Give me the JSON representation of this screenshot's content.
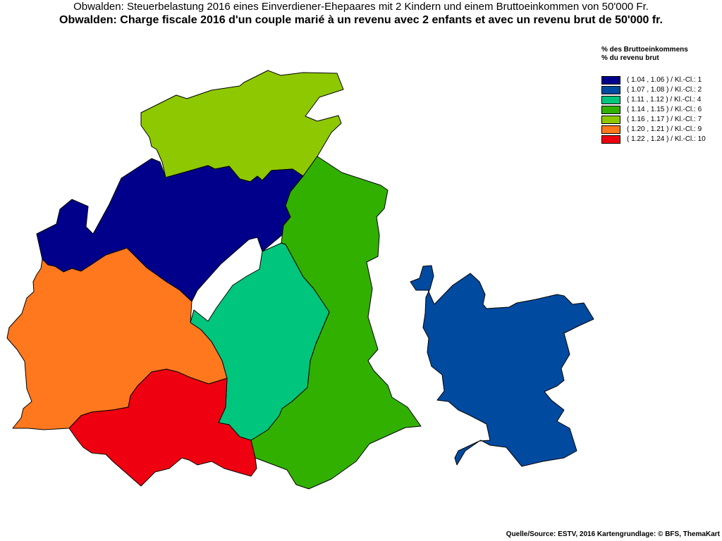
{
  "header": {
    "title_de": "Obwalden: Steuerbelastung 2016 eines Einverdiener-Ehepaares mit 2 Kindern und einem Bruttoeinkommen von 50'000 Fr.",
    "title_fr": "Obwalden: Charge fiscale 2016 d'un couple marié à un revenu avec 2 enfants et avec un revenu brut de 50'000 fr."
  },
  "legend": {
    "title_de": "% des Bruttoeinkommens",
    "title_fr": "% du revenu brut",
    "classes": [
      {
        "label": "( 1.04 , 1.06 ) / Kl.-Cl.: 1",
        "color": "#00008b"
      },
      {
        "label": "( 1.07 , 1.08 ) / Kl.-Cl.: 2",
        "color": "#004aa0"
      },
      {
        "label": "( 1.11 , 1.12 ) / Kl.-Cl.: 4",
        "color": "#00c57d"
      },
      {
        "label": "( 1.14 , 1.15 ) / Kl.-Cl.: 6",
        "color": "#32b000"
      },
      {
        "label": "( 1.16 , 1.17 ) / Kl.-Cl.: 7",
        "color": "#8ec800"
      },
      {
        "label": "( 1.20 , 1.21 ) / Kl.-Cl.: 9",
        "color": "#ff781e"
      },
      {
        "label": "( 1.22 , 1.24 ) / Kl.-Cl.: 10",
        "color": "#ee0011"
      }
    ]
  },
  "map": {
    "regions": [
      {
        "id": "north",
        "class_index": 4,
        "color": "#8ec800"
      },
      {
        "id": "center-north",
        "class_index": 0,
        "color": "#00008b"
      },
      {
        "id": "east",
        "class_index": 3,
        "color": "#32b000"
      },
      {
        "id": "center",
        "class_index": 2,
        "color": "#00c57d"
      },
      {
        "id": "west",
        "class_index": 5,
        "color": "#ff781e"
      },
      {
        "id": "south",
        "class_index": 6,
        "color": "#ee0011"
      },
      {
        "id": "exclave",
        "class_index": 1,
        "color": "#004aa0"
      }
    ]
  },
  "footer": {
    "source": "Quelle/Source: ESTV, 2016 Kartengrundlage: © BFS, ThemaKart"
  }
}
